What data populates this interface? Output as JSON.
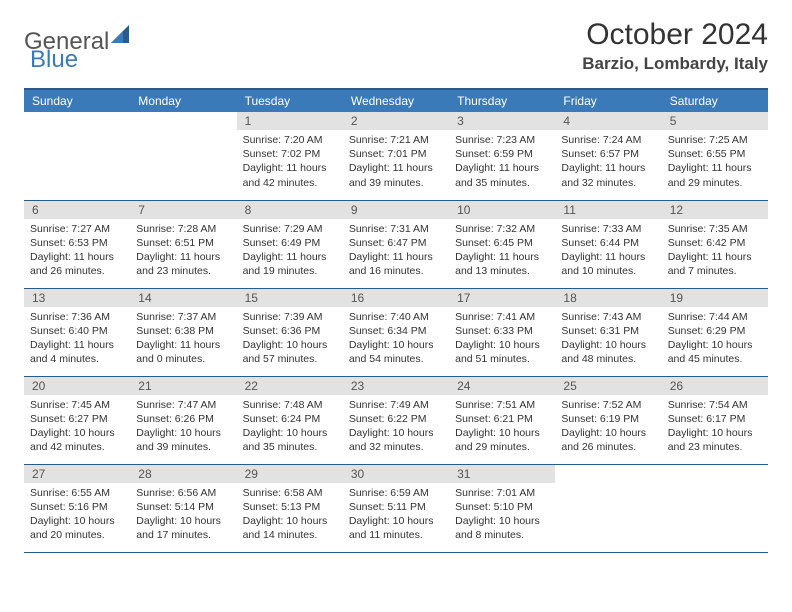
{
  "brand": {
    "general": "General",
    "blue": "Blue"
  },
  "title": "October 2024",
  "location": "Barzio, Lombardy, Italy",
  "colors": {
    "header_bg": "#3a7ab8",
    "header_border": "#2b5a8a",
    "daynum_bg": "#e2e2e2",
    "text": "#333333",
    "page_bg": "#ffffff"
  },
  "weekdays": [
    "Sunday",
    "Monday",
    "Tuesday",
    "Wednesday",
    "Thursday",
    "Friday",
    "Saturday"
  ],
  "weeks": [
    [
      {},
      {},
      {
        "n": "1",
        "sr": "Sunrise: 7:20 AM",
        "ss": "Sunset: 7:02 PM",
        "dl": "Daylight: 11 hours and 42 minutes."
      },
      {
        "n": "2",
        "sr": "Sunrise: 7:21 AM",
        "ss": "Sunset: 7:01 PM",
        "dl": "Daylight: 11 hours and 39 minutes."
      },
      {
        "n": "3",
        "sr": "Sunrise: 7:23 AM",
        "ss": "Sunset: 6:59 PM",
        "dl": "Daylight: 11 hours and 35 minutes."
      },
      {
        "n": "4",
        "sr": "Sunrise: 7:24 AM",
        "ss": "Sunset: 6:57 PM",
        "dl": "Daylight: 11 hours and 32 minutes."
      },
      {
        "n": "5",
        "sr": "Sunrise: 7:25 AM",
        "ss": "Sunset: 6:55 PM",
        "dl": "Daylight: 11 hours and 29 minutes."
      }
    ],
    [
      {
        "n": "6",
        "sr": "Sunrise: 7:27 AM",
        "ss": "Sunset: 6:53 PM",
        "dl": "Daylight: 11 hours and 26 minutes."
      },
      {
        "n": "7",
        "sr": "Sunrise: 7:28 AM",
        "ss": "Sunset: 6:51 PM",
        "dl": "Daylight: 11 hours and 23 minutes."
      },
      {
        "n": "8",
        "sr": "Sunrise: 7:29 AM",
        "ss": "Sunset: 6:49 PM",
        "dl": "Daylight: 11 hours and 19 minutes."
      },
      {
        "n": "9",
        "sr": "Sunrise: 7:31 AM",
        "ss": "Sunset: 6:47 PM",
        "dl": "Daylight: 11 hours and 16 minutes."
      },
      {
        "n": "10",
        "sr": "Sunrise: 7:32 AM",
        "ss": "Sunset: 6:45 PM",
        "dl": "Daylight: 11 hours and 13 minutes."
      },
      {
        "n": "11",
        "sr": "Sunrise: 7:33 AM",
        "ss": "Sunset: 6:44 PM",
        "dl": "Daylight: 11 hours and 10 minutes."
      },
      {
        "n": "12",
        "sr": "Sunrise: 7:35 AM",
        "ss": "Sunset: 6:42 PM",
        "dl": "Daylight: 11 hours and 7 minutes."
      }
    ],
    [
      {
        "n": "13",
        "sr": "Sunrise: 7:36 AM",
        "ss": "Sunset: 6:40 PM",
        "dl": "Daylight: 11 hours and 4 minutes."
      },
      {
        "n": "14",
        "sr": "Sunrise: 7:37 AM",
        "ss": "Sunset: 6:38 PM",
        "dl": "Daylight: 11 hours and 0 minutes."
      },
      {
        "n": "15",
        "sr": "Sunrise: 7:39 AM",
        "ss": "Sunset: 6:36 PM",
        "dl": "Daylight: 10 hours and 57 minutes."
      },
      {
        "n": "16",
        "sr": "Sunrise: 7:40 AM",
        "ss": "Sunset: 6:34 PM",
        "dl": "Daylight: 10 hours and 54 minutes."
      },
      {
        "n": "17",
        "sr": "Sunrise: 7:41 AM",
        "ss": "Sunset: 6:33 PM",
        "dl": "Daylight: 10 hours and 51 minutes."
      },
      {
        "n": "18",
        "sr": "Sunrise: 7:43 AM",
        "ss": "Sunset: 6:31 PM",
        "dl": "Daylight: 10 hours and 48 minutes."
      },
      {
        "n": "19",
        "sr": "Sunrise: 7:44 AM",
        "ss": "Sunset: 6:29 PM",
        "dl": "Daylight: 10 hours and 45 minutes."
      }
    ],
    [
      {
        "n": "20",
        "sr": "Sunrise: 7:45 AM",
        "ss": "Sunset: 6:27 PM",
        "dl": "Daylight: 10 hours and 42 minutes."
      },
      {
        "n": "21",
        "sr": "Sunrise: 7:47 AM",
        "ss": "Sunset: 6:26 PM",
        "dl": "Daylight: 10 hours and 39 minutes."
      },
      {
        "n": "22",
        "sr": "Sunrise: 7:48 AM",
        "ss": "Sunset: 6:24 PM",
        "dl": "Daylight: 10 hours and 35 minutes."
      },
      {
        "n": "23",
        "sr": "Sunrise: 7:49 AM",
        "ss": "Sunset: 6:22 PM",
        "dl": "Daylight: 10 hours and 32 minutes."
      },
      {
        "n": "24",
        "sr": "Sunrise: 7:51 AM",
        "ss": "Sunset: 6:21 PM",
        "dl": "Daylight: 10 hours and 29 minutes."
      },
      {
        "n": "25",
        "sr": "Sunrise: 7:52 AM",
        "ss": "Sunset: 6:19 PM",
        "dl": "Daylight: 10 hours and 26 minutes."
      },
      {
        "n": "26",
        "sr": "Sunrise: 7:54 AM",
        "ss": "Sunset: 6:17 PM",
        "dl": "Daylight: 10 hours and 23 minutes."
      }
    ],
    [
      {
        "n": "27",
        "sr": "Sunrise: 6:55 AM",
        "ss": "Sunset: 5:16 PM",
        "dl": "Daylight: 10 hours and 20 minutes."
      },
      {
        "n": "28",
        "sr": "Sunrise: 6:56 AM",
        "ss": "Sunset: 5:14 PM",
        "dl": "Daylight: 10 hours and 17 minutes."
      },
      {
        "n": "29",
        "sr": "Sunrise: 6:58 AM",
        "ss": "Sunset: 5:13 PM",
        "dl": "Daylight: 10 hours and 14 minutes."
      },
      {
        "n": "30",
        "sr": "Sunrise: 6:59 AM",
        "ss": "Sunset: 5:11 PM",
        "dl": "Daylight: 10 hours and 11 minutes."
      },
      {
        "n": "31",
        "sr": "Sunrise: 7:01 AM",
        "ss": "Sunset: 5:10 PM",
        "dl": "Daylight: 10 hours and 8 minutes."
      },
      {},
      {}
    ]
  ]
}
